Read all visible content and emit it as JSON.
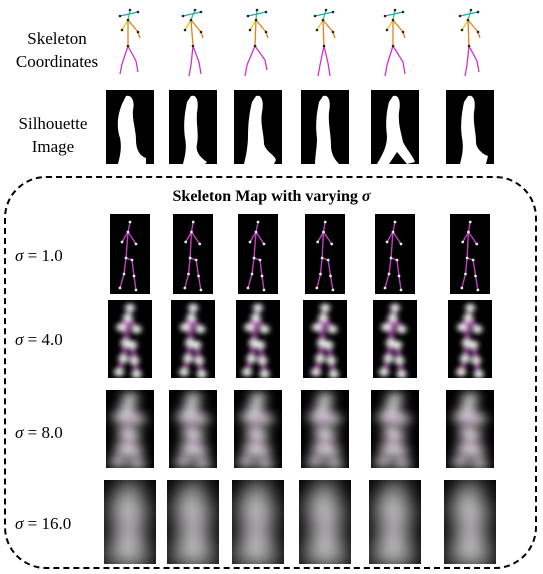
{
  "labels": {
    "skeleton": "Skeleton Coordinates",
    "silhouette": "Silhouette Image",
    "box_title_prefix": "Skeleton Map with varying ",
    "box_title_symbol": "σ"
  },
  "sigma_rows": [
    {
      "symbol": "σ",
      "eq": " = 1.0"
    },
    {
      "symbol": "σ",
      "eq": " = 4.0"
    },
    {
      "symbol": "σ",
      "eq": " = 8.0"
    },
    {
      "symbol": "σ",
      "eq": " = 16.0"
    }
  ],
  "colors": {
    "background": "#ffffff",
    "tile_background": "#000000",
    "silhouette": "#ffffff",
    "skeleton_magenta": "#cc33cc",
    "skeleton_orange": "#e8801a",
    "skeleton_green": "#33cc66",
    "skeleton_cyan": "#1aaab0",
    "skeleton_yellow": "#d8d020",
    "heatmap_glow": "#e8e8e8",
    "map_line": "#c040c0"
  }
}
